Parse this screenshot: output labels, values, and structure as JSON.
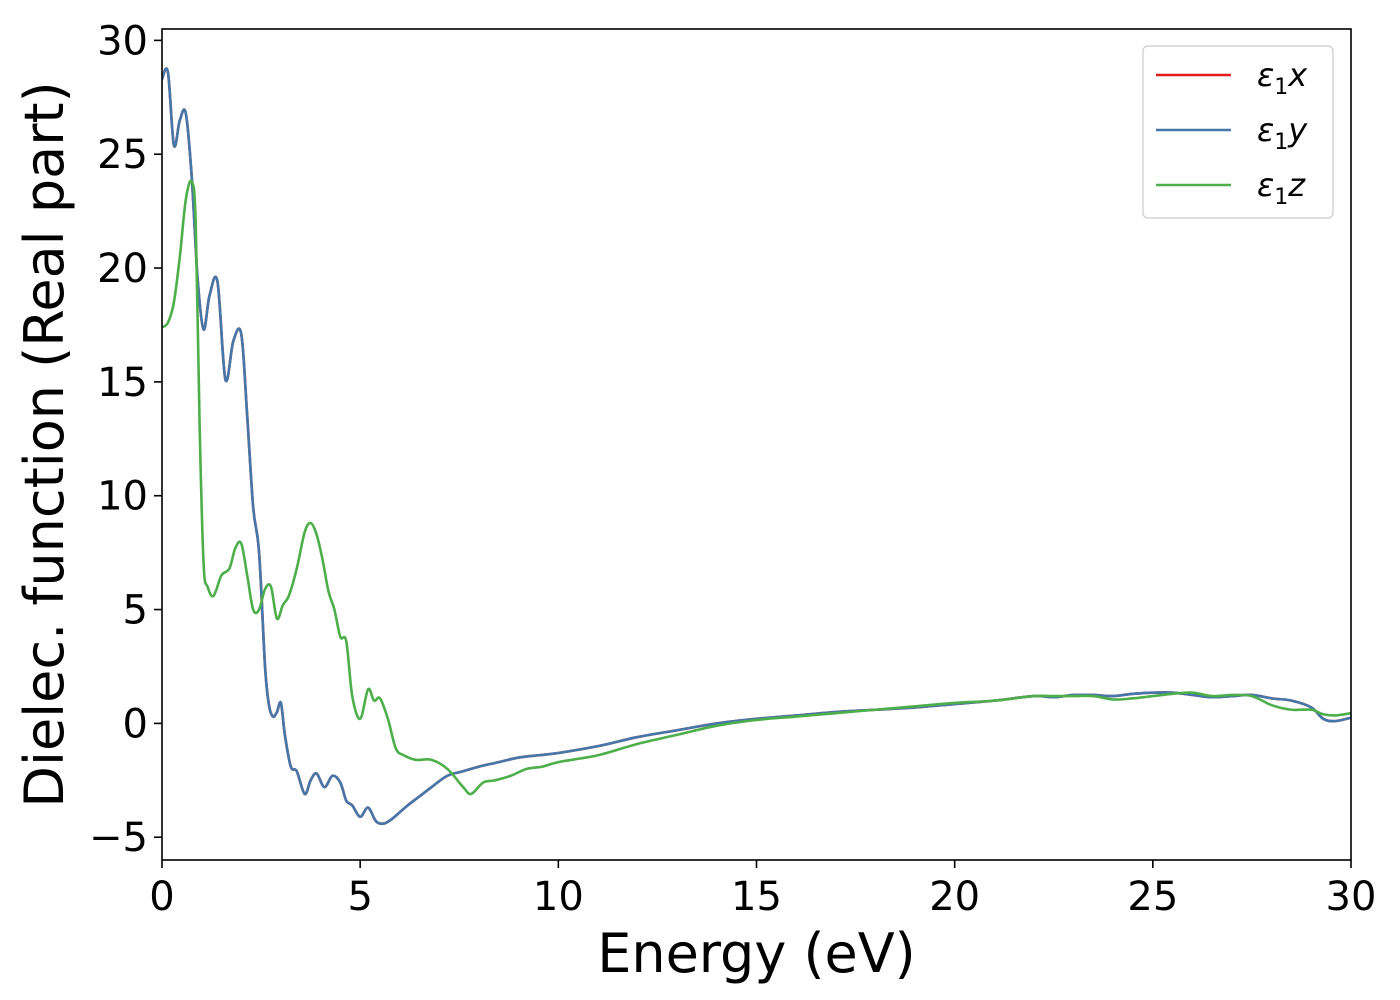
{
  "chart_data": {
    "type": "line",
    "title": "",
    "xlabel": "Energy (eV)",
    "ylabel": "Dielec. function (Real part)",
    "xlim": [
      0,
      30
    ],
    "ylim": [
      -6,
      30.5
    ],
    "xticks": [
      0,
      5,
      10,
      15,
      20,
      25,
      30
    ],
    "xtick_labels": [
      "0",
      "5",
      "10",
      "15",
      "20",
      "25",
      "30"
    ],
    "yticks": [
      -5,
      0,
      5,
      10,
      15,
      20,
      25,
      30
    ],
    "ytick_labels": [
      "−5",
      "0",
      "5",
      "10",
      "15",
      "20",
      "25",
      "30"
    ],
    "grid": false,
    "legend_position": "top-right",
    "series": [
      {
        "name": "ε1x",
        "legend_base": "ε",
        "legend_sub": "1",
        "legend_axis": "x",
        "color": "#e41a1c",
        "x": [
          0,
          0.15,
          0.3,
          0.45,
          0.6,
          0.75,
          0.9,
          1.05,
          1.2,
          1.4,
          1.6,
          1.8,
          2.0,
          2.15,
          2.3,
          2.45,
          2.6,
          2.7,
          2.8,
          2.9,
          3.0,
          3.1,
          3.25,
          3.4,
          3.6,
          3.75,
          3.9,
          4.1,
          4.3,
          4.5,
          4.65,
          4.8,
          5.0,
          5.2,
          5.4,
          5.6,
          5.8,
          6.0,
          6.2,
          6.5,
          6.8,
          7.2,
          7.6,
          8.0,
          8.5,
          9.0,
          9.5,
          10,
          11,
          12,
          13,
          14,
          15,
          16,
          17,
          18,
          19,
          20,
          21,
          22,
          22.5,
          23,
          23.5,
          24,
          24.5,
          25,
          25.5,
          26,
          26.5,
          27,
          27.5,
          28,
          28.5,
          29,
          29.3,
          29.6,
          30
        ],
        "y": [
          28.3,
          28.6,
          25.4,
          26.5,
          26.8,
          24.0,
          19.5,
          17.3,
          18.8,
          19.4,
          15.1,
          16.8,
          17.1,
          13.5,
          9.5,
          7.5,
          2.5,
          0.8,
          0.3,
          0.5,
          0.9,
          -0.5,
          -1.9,
          -2.1,
          -3.1,
          -2.5,
          -2.2,
          -2.8,
          -2.3,
          -2.6,
          -3.4,
          -3.6,
          -4.1,
          -3.7,
          -4.3,
          -4.4,
          -4.2,
          -3.9,
          -3.6,
          -3.2,
          -2.8,
          -2.3,
          -2.1,
          -1.9,
          -1.7,
          -1.5,
          -1.4,
          -1.3,
          -1.0,
          -0.6,
          -0.3,
          0.0,
          0.2,
          0.35,
          0.5,
          0.6,
          0.7,
          0.85,
          1.0,
          1.2,
          1.15,
          1.25,
          1.25,
          1.2,
          1.3,
          1.35,
          1.35,
          1.25,
          1.15,
          1.2,
          1.25,
          1.1,
          1.0,
          0.7,
          0.2,
          0.1,
          0.25
        ]
      },
      {
        "name": "ε1y",
        "legend_base": "ε",
        "legend_sub": "1",
        "legend_axis": "y",
        "color": "#4477aa",
        "x": [
          0,
          0.15,
          0.3,
          0.45,
          0.6,
          0.75,
          0.9,
          1.05,
          1.2,
          1.4,
          1.6,
          1.8,
          2.0,
          2.15,
          2.3,
          2.45,
          2.6,
          2.7,
          2.8,
          2.9,
          3.0,
          3.1,
          3.25,
          3.4,
          3.6,
          3.75,
          3.9,
          4.1,
          4.3,
          4.5,
          4.65,
          4.8,
          5.0,
          5.2,
          5.4,
          5.6,
          5.8,
          6.0,
          6.2,
          6.5,
          6.8,
          7.2,
          7.6,
          8.0,
          8.5,
          9.0,
          9.5,
          10,
          11,
          12,
          13,
          14,
          15,
          16,
          17,
          18,
          19,
          20,
          21,
          22,
          22.5,
          23,
          23.5,
          24,
          24.5,
          25,
          25.5,
          26,
          26.5,
          27,
          27.5,
          28,
          28.5,
          29,
          29.3,
          29.6,
          30
        ],
        "y": [
          28.3,
          28.6,
          25.4,
          26.5,
          26.8,
          24.0,
          19.5,
          17.3,
          18.8,
          19.4,
          15.1,
          16.8,
          17.1,
          13.5,
          9.5,
          7.5,
          2.5,
          0.8,
          0.3,
          0.5,
          0.9,
          -0.5,
          -1.9,
          -2.1,
          -3.1,
          -2.5,
          -2.2,
          -2.8,
          -2.3,
          -2.6,
          -3.4,
          -3.6,
          -4.1,
          -3.7,
          -4.3,
          -4.4,
          -4.2,
          -3.9,
          -3.6,
          -3.2,
          -2.8,
          -2.3,
          -2.1,
          -1.9,
          -1.7,
          -1.5,
          -1.4,
          -1.3,
          -1.0,
          -0.6,
          -0.3,
          0.0,
          0.2,
          0.35,
          0.5,
          0.6,
          0.7,
          0.85,
          1.0,
          1.2,
          1.15,
          1.25,
          1.25,
          1.2,
          1.3,
          1.35,
          1.35,
          1.25,
          1.15,
          1.2,
          1.25,
          1.1,
          1.0,
          0.7,
          0.2,
          0.1,
          0.25
        ]
      },
      {
        "name": "ε1z",
        "legend_base": "ε",
        "legend_sub": "1",
        "legend_axis": "z",
        "color": "#4daf4a",
        "x": [
          0,
          0.15,
          0.3,
          0.45,
          0.6,
          0.75,
          0.85,
          0.95,
          1.05,
          1.15,
          1.3,
          1.5,
          1.7,
          1.85,
          2.0,
          2.15,
          2.3,
          2.45,
          2.6,
          2.75,
          2.9,
          3.05,
          3.2,
          3.4,
          3.6,
          3.75,
          3.9,
          4.05,
          4.2,
          4.35,
          4.5,
          4.65,
          4.8,
          5.0,
          5.2,
          5.35,
          5.5,
          5.7,
          5.9,
          6.1,
          6.4,
          6.8,
          7.2,
          7.6,
          7.8,
          8.1,
          8.4,
          8.8,
          9.2,
          9.6,
          10,
          11,
          12,
          13,
          14,
          15,
          16,
          17,
          18,
          19,
          20,
          21,
          22,
          22.5,
          23,
          23.5,
          24,
          24.5,
          25,
          25.5,
          26,
          26.5,
          27,
          27.5,
          28,
          28.5,
          29,
          29.3,
          29.6,
          30
        ],
        "y": [
          17.4,
          17.6,
          18.5,
          20.5,
          23.0,
          23.8,
          22.0,
          13.0,
          7.0,
          6.0,
          5.6,
          6.5,
          6.8,
          7.7,
          7.9,
          6.5,
          5.0,
          5.0,
          5.9,
          6.0,
          4.6,
          5.2,
          5.6,
          6.8,
          8.4,
          8.8,
          8.3,
          7.2,
          5.8,
          5.0,
          3.8,
          3.6,
          1.2,
          0.2,
          1.5,
          1.0,
          1.1,
          0.2,
          -1.1,
          -1.4,
          -1.6,
          -1.6,
          -2.0,
          -2.8,
          -3.1,
          -2.6,
          -2.5,
          -2.3,
          -2.0,
          -1.9,
          -1.7,
          -1.4,
          -0.9,
          -0.5,
          -0.1,
          0.15,
          0.3,
          0.45,
          0.6,
          0.75,
          0.9,
          1.0,
          1.2,
          1.2,
          1.2,
          1.2,
          1.05,
          1.1,
          1.2,
          1.3,
          1.35,
          1.2,
          1.25,
          1.2,
          0.8,
          0.6,
          0.6,
          0.4,
          0.35,
          0.45
        ]
      }
    ]
  }
}
